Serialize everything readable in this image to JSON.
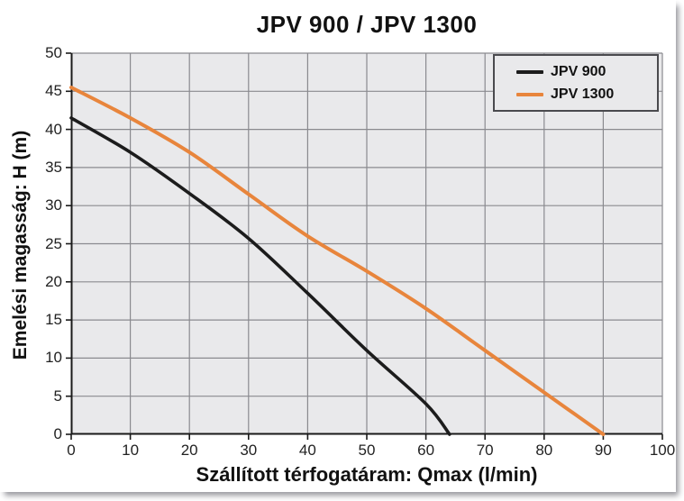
{
  "chart_data": {
    "type": "line",
    "title": "JPV 900 / JPV 1300",
    "xlabel": "Szállított térfogatáram: Qmax (l/min)",
    "ylabel": "Emelési magasság: H (m)",
    "xlim": [
      0,
      100
    ],
    "ylim": [
      0,
      50
    ],
    "x_ticks": [
      0,
      10,
      20,
      30,
      40,
      50,
      60,
      70,
      80,
      90,
      100
    ],
    "y_ticks": [
      0,
      5,
      10,
      15,
      20,
      25,
      30,
      35,
      40,
      45,
      50
    ],
    "grid": true,
    "legend_position": "top-right",
    "colors": {
      "plot_bg": "#e9e9eb",
      "grid": "#8a8a8f",
      "axis": "#1a1a1a"
    },
    "series": [
      {
        "name": "JPV 900",
        "color": "#1c1c1c",
        "points": [
          [
            0,
            41.5
          ],
          [
            10,
            37
          ],
          [
            20,
            31.6
          ],
          [
            30,
            25.7
          ],
          [
            40,
            18.5
          ],
          [
            50,
            11
          ],
          [
            60,
            4
          ],
          [
            64,
            0
          ]
        ]
      },
      {
        "name": "JPV 1300",
        "color": "#e8853c",
        "points": [
          [
            0,
            45.5
          ],
          [
            10,
            41.5
          ],
          [
            20,
            37
          ],
          [
            30,
            31.5
          ],
          [
            40,
            26
          ],
          [
            50,
            21.4
          ],
          [
            60,
            16.5
          ],
          [
            70,
            11
          ],
          [
            80,
            5.5
          ],
          [
            90,
            0
          ]
        ]
      }
    ]
  }
}
